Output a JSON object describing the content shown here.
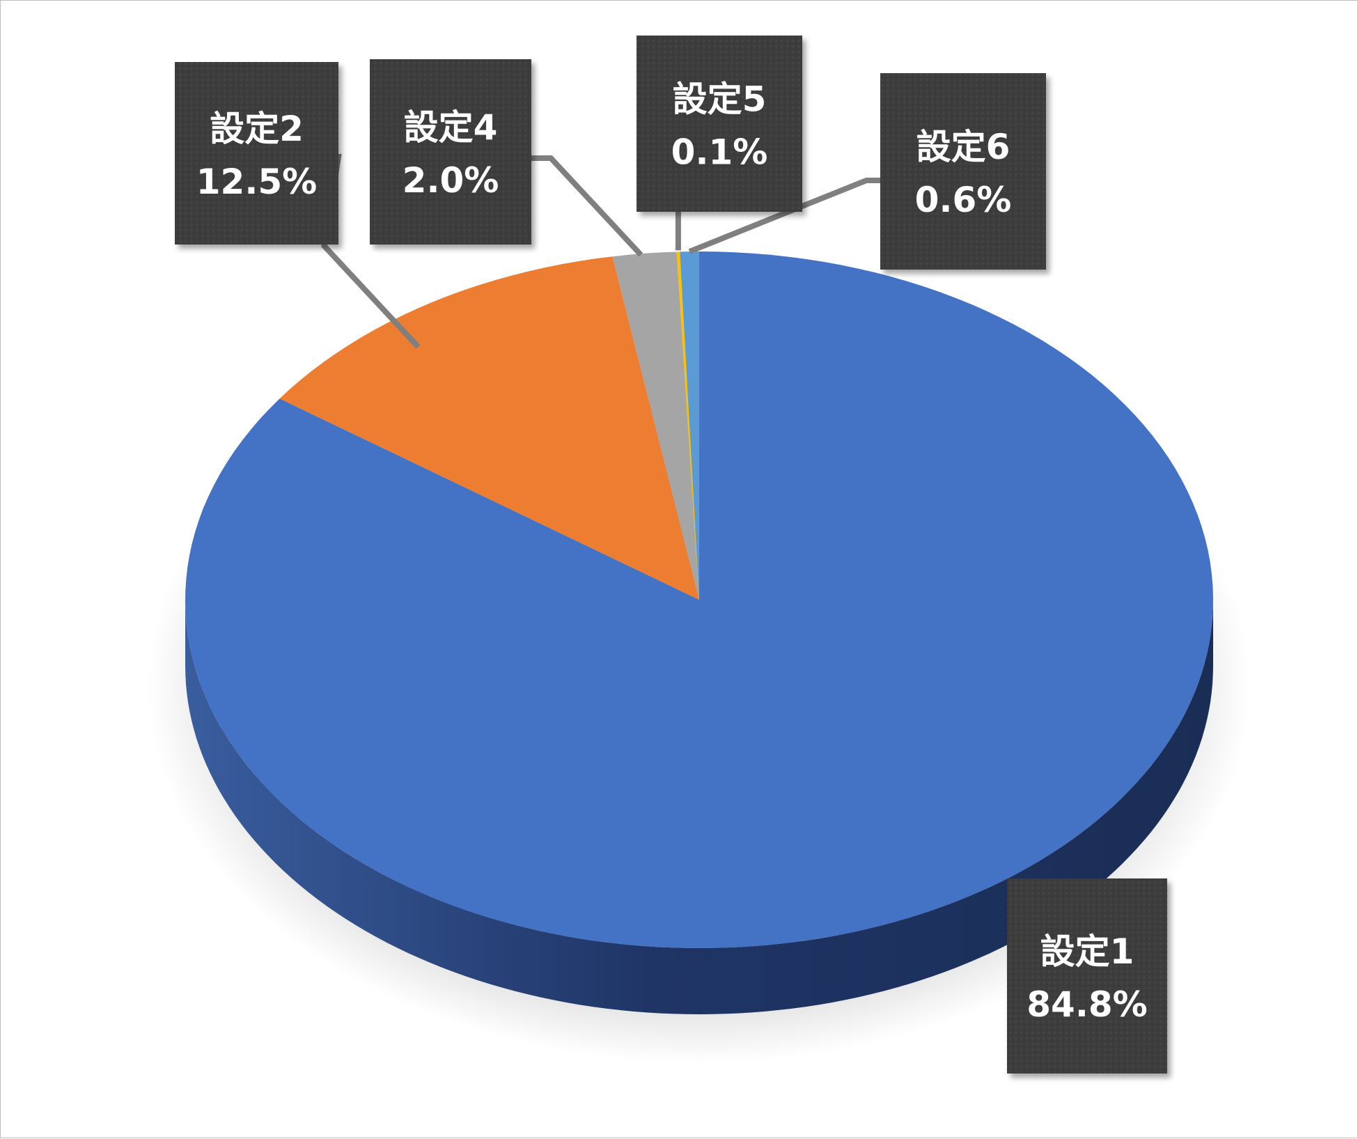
{
  "chart_data": {
    "type": "pie",
    "style": "3d",
    "title": "",
    "legend": "none",
    "slices": [
      {
        "name": "設定1",
        "percent_label": "84.8%",
        "value": 84.8,
        "color": "#4472C4"
      },
      {
        "name": "設定2",
        "percent_label": "12.5%",
        "value": 12.5,
        "color": "#ED7D31"
      },
      {
        "name": "設定4",
        "percent_label": "2.0%",
        "value": 2.0,
        "color": "#A5A5A5"
      },
      {
        "name": "設定5",
        "percent_label": "0.1%",
        "value": 0.1,
        "color": "#FFC000"
      },
      {
        "name": "設定6",
        "percent_label": "0.6%",
        "value": 0.6,
        "color": "#5B9BD5"
      }
    ]
  }
}
